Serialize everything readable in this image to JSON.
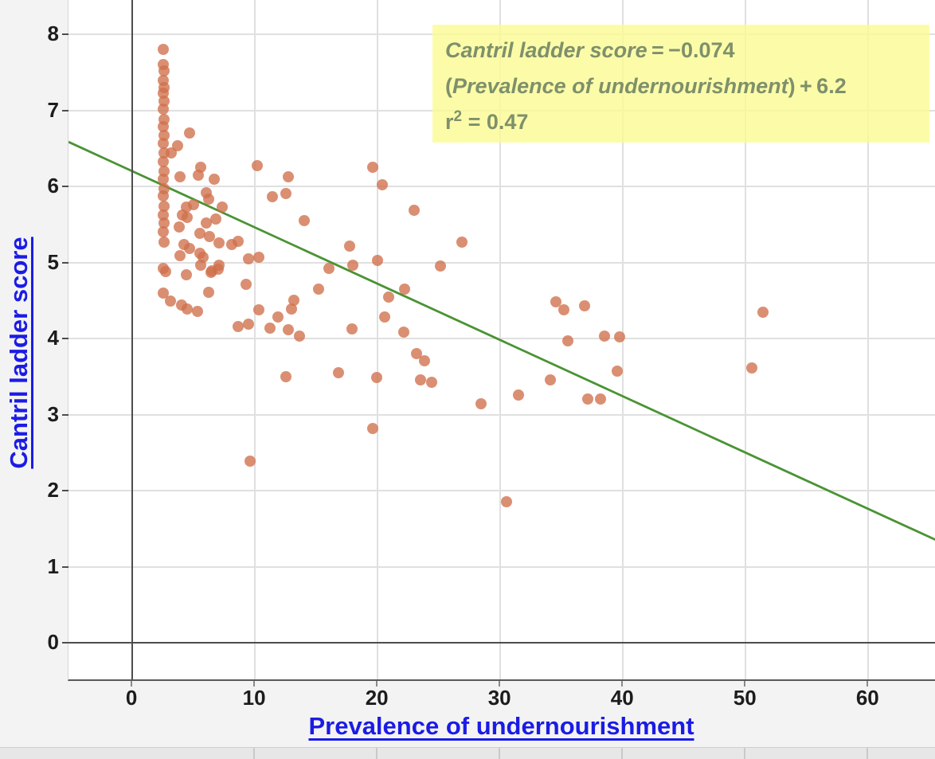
{
  "colors": {
    "link_blue": "#1b1be6",
    "point_fill": "rgba(208,112,74,0.78)",
    "trend_green": "#4a9334",
    "equation_bg": "rgba(251,251,146,0.8)",
    "equation_text": "#7e906b",
    "grid": "#e0e0e0",
    "axis_dark": "#4d4d4d"
  },
  "chart_data": {
    "type": "scatter",
    "title": "",
    "xlabel": "Prevalence of undernourishment",
    "ylabel": "Cantril ladder score",
    "x_axis": {
      "min": -5.2,
      "max": 65.5,
      "ticks": [
        0,
        10,
        20,
        30,
        40,
        50,
        60
      ]
    },
    "y_axis": {
      "min": -0.48,
      "max": 8.45,
      "ticks": [
        0,
        1,
        2,
        3,
        4,
        5,
        6,
        7,
        8
      ]
    },
    "grid": true,
    "legend": "none",
    "trend_line": {
      "slope": -0.074,
      "intercept": 6.2,
      "r2": 0.47
    },
    "equation_box": {
      "line1_var": "Cantril ladder score",
      "line1_rest": " = −0.074",
      "line2_open": "(",
      "line2_var": "Prevalence of undernourishment",
      "line2_rest": ") + 6.2",
      "line3_base": "r",
      "line3_sup": "2",
      "line3_rest": " = 0.47"
    },
    "points": [
      [
        2.5,
        7.8
      ],
      [
        2.5,
        7.6
      ],
      [
        2.6,
        7.52
      ],
      [
        2.5,
        7.39
      ],
      [
        2.6,
        7.3
      ],
      [
        2.5,
        7.23
      ],
      [
        2.6,
        7.12
      ],
      [
        2.5,
        7.02
      ],
      [
        2.6,
        6.88
      ],
      [
        2.5,
        6.79
      ],
      [
        2.6,
        6.67
      ],
      [
        2.5,
        6.57
      ],
      [
        2.6,
        6.44
      ],
      [
        2.5,
        6.32
      ],
      [
        2.6,
        6.2
      ],
      [
        2.5,
        6.09
      ],
      [
        2.6,
        5.97
      ],
      [
        2.5,
        5.87
      ],
      [
        2.6,
        5.74
      ],
      [
        2.5,
        5.62
      ],
      [
        2.6,
        5.52
      ],
      [
        2.5,
        5.4
      ],
      [
        2.6,
        5.27
      ],
      [
        2.5,
        4.92
      ],
      [
        2.7,
        4.88
      ],
      [
        2.5,
        4.6
      ],
      [
        3.2,
        6.44
      ],
      [
        3.7,
        6.53
      ],
      [
        3.9,
        6.13
      ],
      [
        4.7,
        6.7
      ],
      [
        5.4,
        6.15
      ],
      [
        5.6,
        6.25
      ],
      [
        6.7,
        6.09
      ],
      [
        4.4,
        5.73
      ],
      [
        5.0,
        5.76
      ],
      [
        4.1,
        5.62
      ],
      [
        4.5,
        5.59
      ],
      [
        6.0,
        5.92
      ],
      [
        6.2,
        5.83
      ],
      [
        3.8,
        5.47
      ],
      [
        6.0,
        5.52
      ],
      [
        6.8,
        5.57
      ],
      [
        7.3,
        5.73
      ],
      [
        5.5,
        5.38
      ],
      [
        6.3,
        5.34
      ],
      [
        4.2,
        5.24
      ],
      [
        4.7,
        5.18
      ],
      [
        3.9,
        5.09
      ],
      [
        5.5,
        5.12
      ],
      [
        5.8,
        5.07
      ],
      [
        5.6,
        4.96
      ],
      [
        6.5,
        4.89
      ],
      [
        7.0,
        4.91
      ],
      [
        6.4,
        4.87
      ],
      [
        7.1,
        4.96
      ],
      [
        7.1,
        5.26
      ],
      [
        8.1,
        5.24
      ],
      [
        8.6,
        5.28
      ],
      [
        4.4,
        4.84
      ],
      [
        3.1,
        4.49
      ],
      [
        4.0,
        4.44
      ],
      [
        4.5,
        4.39
      ],
      [
        5.3,
        4.36
      ],
      [
        6.2,
        4.61
      ],
      [
        9.3,
        4.71
      ],
      [
        9.5,
        5.05
      ],
      [
        10.3,
        5.07
      ],
      [
        10.2,
        6.27
      ],
      [
        10.3,
        4.38
      ],
      [
        8.6,
        4.16
      ],
      [
        9.5,
        4.19
      ],
      [
        11.2,
        4.14
      ],
      [
        11.9,
        4.28
      ],
      [
        12.7,
        4.12
      ],
      [
        13.0,
        4.39
      ],
      [
        13.2,
        4.5
      ],
      [
        13.6,
        4.03
      ],
      [
        11.4,
        5.86
      ],
      [
        12.5,
        5.91
      ],
      [
        12.7,
        6.13
      ],
      [
        14.0,
        5.55
      ],
      [
        15.2,
        4.65
      ],
      [
        12.5,
        3.5
      ],
      [
        9.6,
        2.39
      ],
      [
        16.0,
        4.92
      ],
      [
        18.0,
        4.96
      ],
      [
        17.7,
        5.21
      ],
      [
        19.6,
        6.25
      ],
      [
        20.4,
        6.02
      ],
      [
        20.0,
        5.03
      ],
      [
        16.8,
        3.55
      ],
      [
        19.9,
        3.49
      ],
      [
        19.6,
        2.82
      ],
      [
        17.9,
        4.13
      ],
      [
        20.6,
        4.28
      ],
      [
        20.9,
        4.54
      ],
      [
        22.1,
        4.08
      ],
      [
        22.2,
        4.65
      ],
      [
        23.2,
        3.8
      ],
      [
        23.8,
        3.71
      ],
      [
        23.5,
        3.46
      ],
      [
        24.4,
        3.42
      ],
      [
        23.0,
        5.69
      ],
      [
        25.1,
        4.95
      ],
      [
        26.9,
        5.27
      ],
      [
        28.4,
        3.14
      ],
      [
        30.5,
        1.85
      ],
      [
        31.5,
        3.26
      ],
      [
        34.5,
        4.48
      ],
      [
        35.2,
        4.38
      ],
      [
        36.9,
        4.43
      ],
      [
        38.5,
        4.03
      ],
      [
        39.7,
        4.02
      ],
      [
        35.5,
        3.97
      ],
      [
        39.5,
        3.57
      ],
      [
        34.1,
        3.46
      ],
      [
        37.1,
        3.2
      ],
      [
        38.2,
        3.2
      ],
      [
        50.5,
        3.61
      ],
      [
        51.4,
        4.35
      ]
    ]
  }
}
